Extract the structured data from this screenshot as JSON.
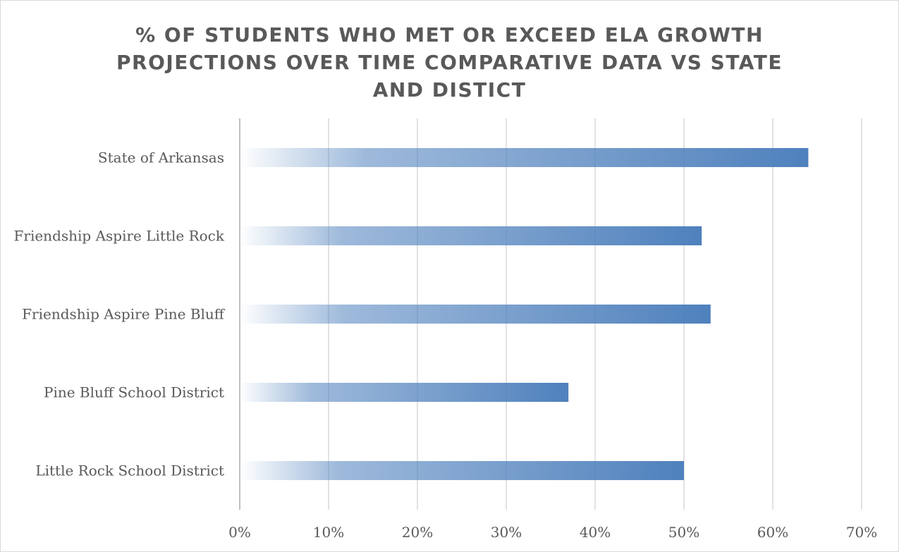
{
  "chart_data": {
    "type": "bar",
    "orientation": "horizontal",
    "title": "% of Students Who Met or Exceed ELA Growth Projections Over Time Comparative Data vs State and Distict",
    "categories": [
      "State of Arkansas",
      "Friendship Aspire Little Rock",
      "Friendship Aspire Pine Bluff",
      "Pine Bluff School District",
      "Little Rock School District"
    ],
    "values": [
      64,
      52,
      53,
      37,
      50
    ],
    "xlim": [
      0,
      70
    ],
    "xticks": [
      0,
      10,
      20,
      30,
      40,
      50,
      60,
      70
    ],
    "tick_format": "%",
    "grid": true,
    "legend": "none",
    "bar_color": "#4f81bd",
    "bar_fill": "gradient (transparent at left to solid blue at right)"
  }
}
